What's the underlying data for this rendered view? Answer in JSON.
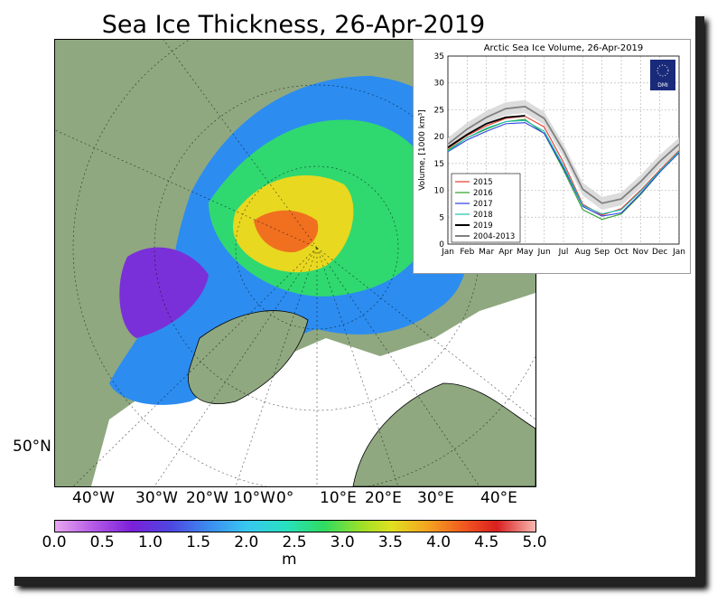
{
  "title": "Sea Ice Thickness, 26-Apr-2019",
  "map": {
    "lon_labels": [
      "40°W",
      "30°W",
      "20°W",
      "10°W",
      "0°",
      "10°E",
      "20°E",
      "30°E",
      "40°E"
    ],
    "lat_label": "50°N",
    "colorbar": {
      "ticks": [
        "0.0",
        "0.5",
        "1.0",
        "1.5",
        "2.0",
        "2.5",
        "3.0",
        "3.5",
        "4.0",
        "4.5",
        "5.0"
      ],
      "unit": "m"
    }
  },
  "logo_text": "DMI",
  "chart_data": {
    "type": "line",
    "title": "Arctic Sea Ice Volume, 26-Apr-2019",
    "ylabel": "Volume, [1000 km³]",
    "xlabel": "",
    "x_ticks": [
      "Jan",
      "Feb",
      "Mar",
      "Apr",
      "May",
      "Jun",
      "Jul",
      "Aug",
      "Sep",
      "Oct",
      "Nov",
      "Dec",
      "Jan"
    ],
    "ylim": [
      0,
      35
    ],
    "y_ticks": [
      0,
      5,
      10,
      15,
      20,
      25,
      30,
      35
    ],
    "grid": true,
    "legend_position": "lower-left",
    "x_months": [
      0,
      1,
      2,
      3,
      4,
      5,
      6,
      7,
      8,
      9,
      10,
      11,
      12
    ],
    "series": [
      {
        "name": "2015",
        "color": "#e8392c",
        "values": [
          17.8,
          20.2,
          22.0,
          23.4,
          23.8,
          21.8,
          15.2,
          7.4,
          5.4,
          6.6,
          10.0,
          13.8,
          17.4
        ]
      },
      {
        "name": "2016",
        "color": "#2ca02c",
        "values": [
          17.5,
          19.8,
          21.4,
          22.8,
          23.2,
          20.6,
          13.8,
          6.4,
          4.6,
          5.6,
          9.2,
          13.4,
          17.2
        ]
      },
      {
        "name": "2017",
        "color": "#2a3fe0",
        "values": [
          17.2,
          19.4,
          21.0,
          22.4,
          22.6,
          20.6,
          14.2,
          7.0,
          5.2,
          5.8,
          9.4,
          13.4,
          17.0
        ]
      },
      {
        "name": "2018",
        "color": "#20c0b0",
        "values": [
          17.3,
          19.8,
          21.6,
          22.8,
          23.0,
          21.0,
          14.6,
          7.2,
          5.6,
          6.4,
          9.8,
          13.6,
          17.2
        ]
      },
      {
        "name": "2019",
        "color": "#000000",
        "values": [
          18.0,
          20.4,
          22.4,
          23.6,
          23.9
        ]
      },
      {
        "name": "2004-2013",
        "color": "#808080",
        "values": [
          18.6,
          21.4,
          23.6,
          25.2,
          25.6,
          23.4,
          17.4,
          10.2,
          7.6,
          8.4,
          11.6,
          15.4,
          18.6
        ]
      }
    ]
  }
}
